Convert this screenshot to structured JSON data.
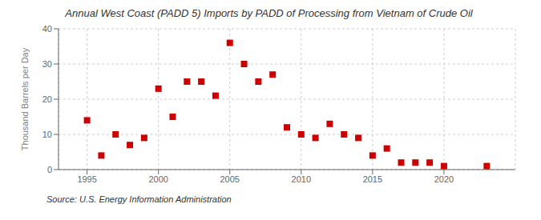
{
  "chart_data": {
    "type": "scatter",
    "title": "Annual West Coast (PADD 5) Imports by PADD of Processing from Vietnam of Crude Oil",
    "y_label": "Thousand Barrels per Day",
    "annotation": "Source: U.S. Energy Information Administration",
    "x": [
      1995,
      1996,
      1997,
      1998,
      1999,
      2000,
      2001,
      2002,
      2003,
      2004,
      2005,
      2006,
      2007,
      2008,
      2009,
      2010,
      2011,
      2012,
      2013,
      2014,
      2015,
      2016,
      2017,
      2018,
      2019,
      2020,
      2023
    ],
    "values": [
      14,
      4,
      10,
      7,
      9,
      23,
      15,
      25,
      25,
      21,
      36,
      30,
      25,
      27,
      12,
      10,
      9,
      13,
      10,
      9,
      4,
      6,
      2,
      2,
      2,
      1,
      1
    ],
    "color": "#cc0000",
    "marker": "square",
    "xlim": [
      1993,
      2025
    ],
    "ylim": [
      0,
      40
    ],
    "xticks": [
      1995,
      2000,
      2005,
      2010,
      2015,
      2020
    ],
    "yticks": [
      0,
      10,
      20,
      30,
      40
    ],
    "grid": true
  }
}
